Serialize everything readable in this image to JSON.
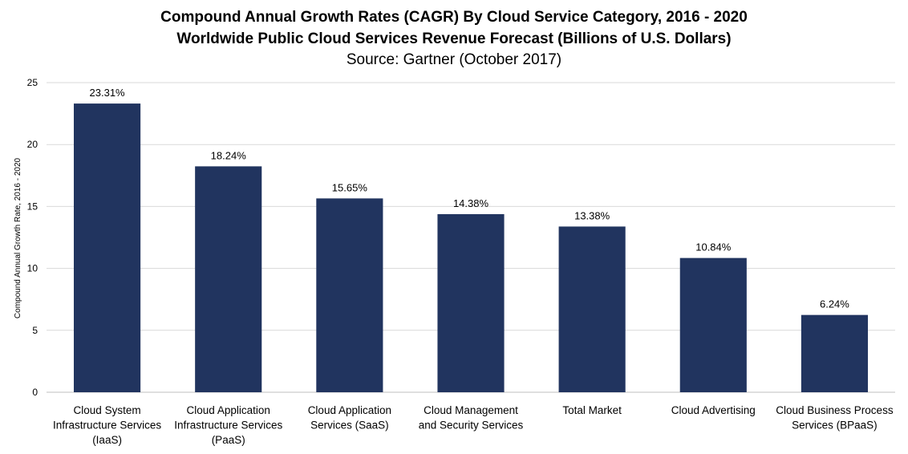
{
  "chart_data": {
    "type": "bar",
    "title": "Compound Annual Growth Rates (CAGR) By Cloud Service Category, 2016 - 2020",
    "subtitle": "Worldwide Public Cloud Services Revenue Forecast (Billions of U.S. Dollars)",
    "source": "Source: Gartner (October 2017)",
    "ylabel": "Compound Annual Growth Rate, 2016 - 2020",
    "xlabel": "",
    "ylim": [
      0,
      25
    ],
    "yticks": [
      0,
      5,
      10,
      15,
      20,
      25
    ],
    "grid": true,
    "bar_color": "#21345f",
    "categories": [
      [
        "Cloud System",
        "Infrastructure Services",
        "(IaaS)"
      ],
      [
        "Cloud Application",
        "Infrastructure Services",
        "(PaaS)"
      ],
      [
        "Cloud Application",
        "Services (SaaS)"
      ],
      [
        "Cloud Management",
        "and Security Services"
      ],
      [
        "Total Market"
      ],
      [
        "Cloud Advertising"
      ],
      [
        "Cloud Business Process",
        "Services (BPaaS)"
      ]
    ],
    "values": [
      23.31,
      18.24,
      15.65,
      14.38,
      13.38,
      10.84,
      6.24
    ],
    "data_labels": [
      "23.31%",
      "18.24%",
      "15.65%",
      "14.38%",
      "13.38%",
      "10.84%",
      "6.24%"
    ]
  }
}
